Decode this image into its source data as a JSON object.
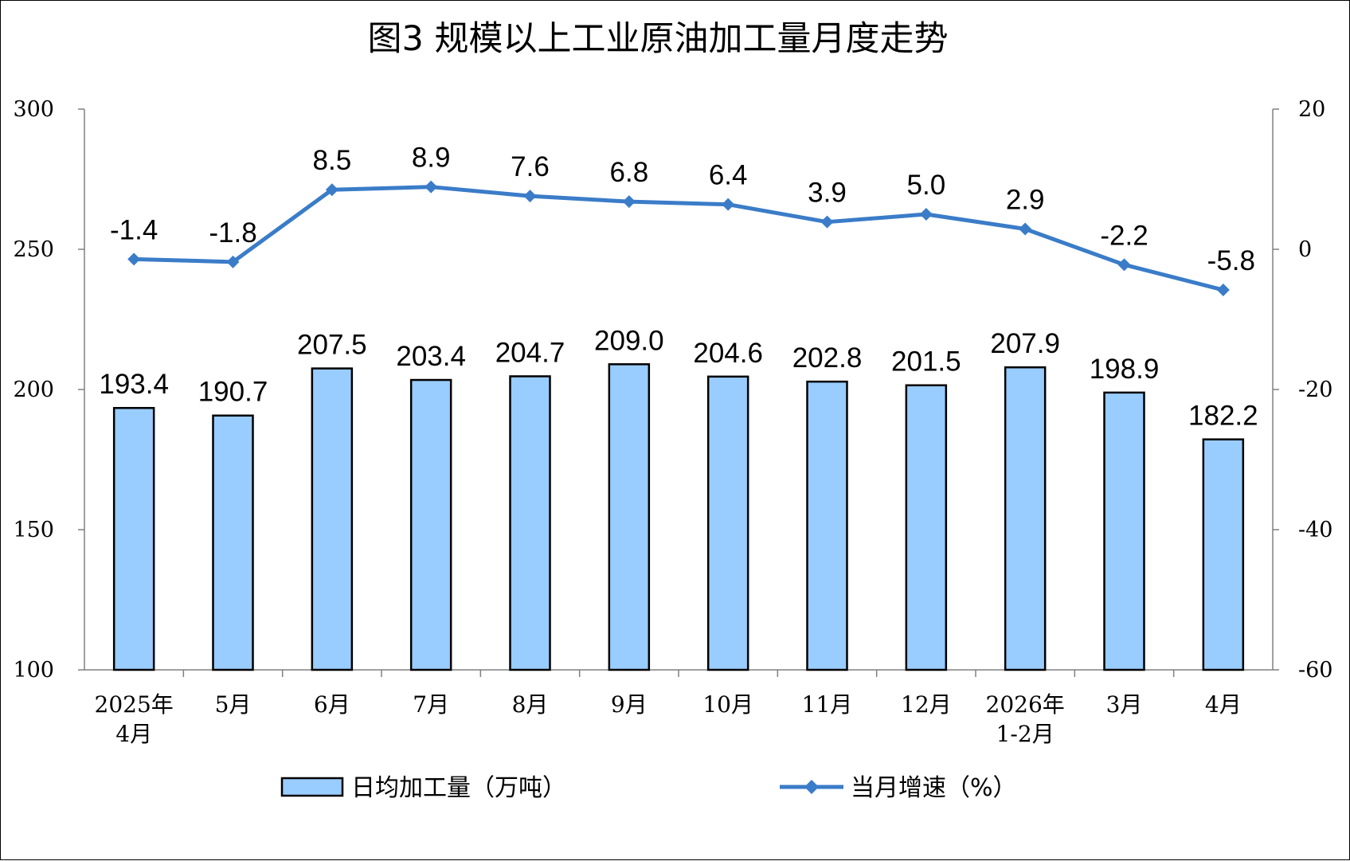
{
  "chart_data": {
    "title": "图3  规模以上工业原油加工量月度走势",
    "categories": [
      [
        "2025年",
        "4月"
      ],
      [
        "5月"
      ],
      [
        "6月"
      ],
      [
        "7月"
      ],
      [
        "8月"
      ],
      [
        "9月"
      ],
      [
        "10月"
      ],
      [
        "11月"
      ],
      [
        "12月"
      ],
      [
        "2026年",
        "1-2月"
      ],
      [
        "3月"
      ],
      [
        "4月"
      ]
    ],
    "series": [
      {
        "name": "日均加工量（万吨）",
        "type": "bar",
        "axis": "left",
        "color": "#99CCFF",
        "values": [
          193.4,
          190.7,
          207.5,
          203.4,
          204.7,
          209.0,
          204.6,
          202.8,
          201.5,
          207.9,
          198.9,
          182.2
        ],
        "labels": [
          "193.4",
          "190.7",
          "207.5",
          "203.4",
          "204.7",
          "209.0",
          "204.6",
          "202.8",
          "201.5",
          "207.9",
          "198.9",
          "182.2"
        ]
      },
      {
        "name": "当月增速（%）",
        "type": "line",
        "marker": "diamond",
        "axis": "right",
        "color": "#3A7CC8",
        "values": [
          -1.4,
          -1.8,
          8.5,
          8.9,
          7.6,
          6.8,
          6.4,
          3.9,
          5.0,
          2.9,
          -2.2,
          -5.8
        ],
        "labels": [
          "-1.4",
          "-1.8",
          "8.5",
          "8.9",
          "7.6",
          "6.8",
          "6.4",
          "3.9",
          "5.0",
          "2.9",
          "-2.2",
          "-5.8"
        ]
      }
    ],
    "y_left": {
      "range": [
        100,
        300
      ],
      "ticks": [
        "100",
        "150",
        "200",
        "250",
        "300"
      ]
    },
    "y_right": {
      "range": [
        -60,
        20
      ],
      "ticks": [
        "-60",
        "-40",
        "-20",
        "0",
        "20"
      ]
    },
    "grid": false,
    "legend_position": "bottom"
  }
}
